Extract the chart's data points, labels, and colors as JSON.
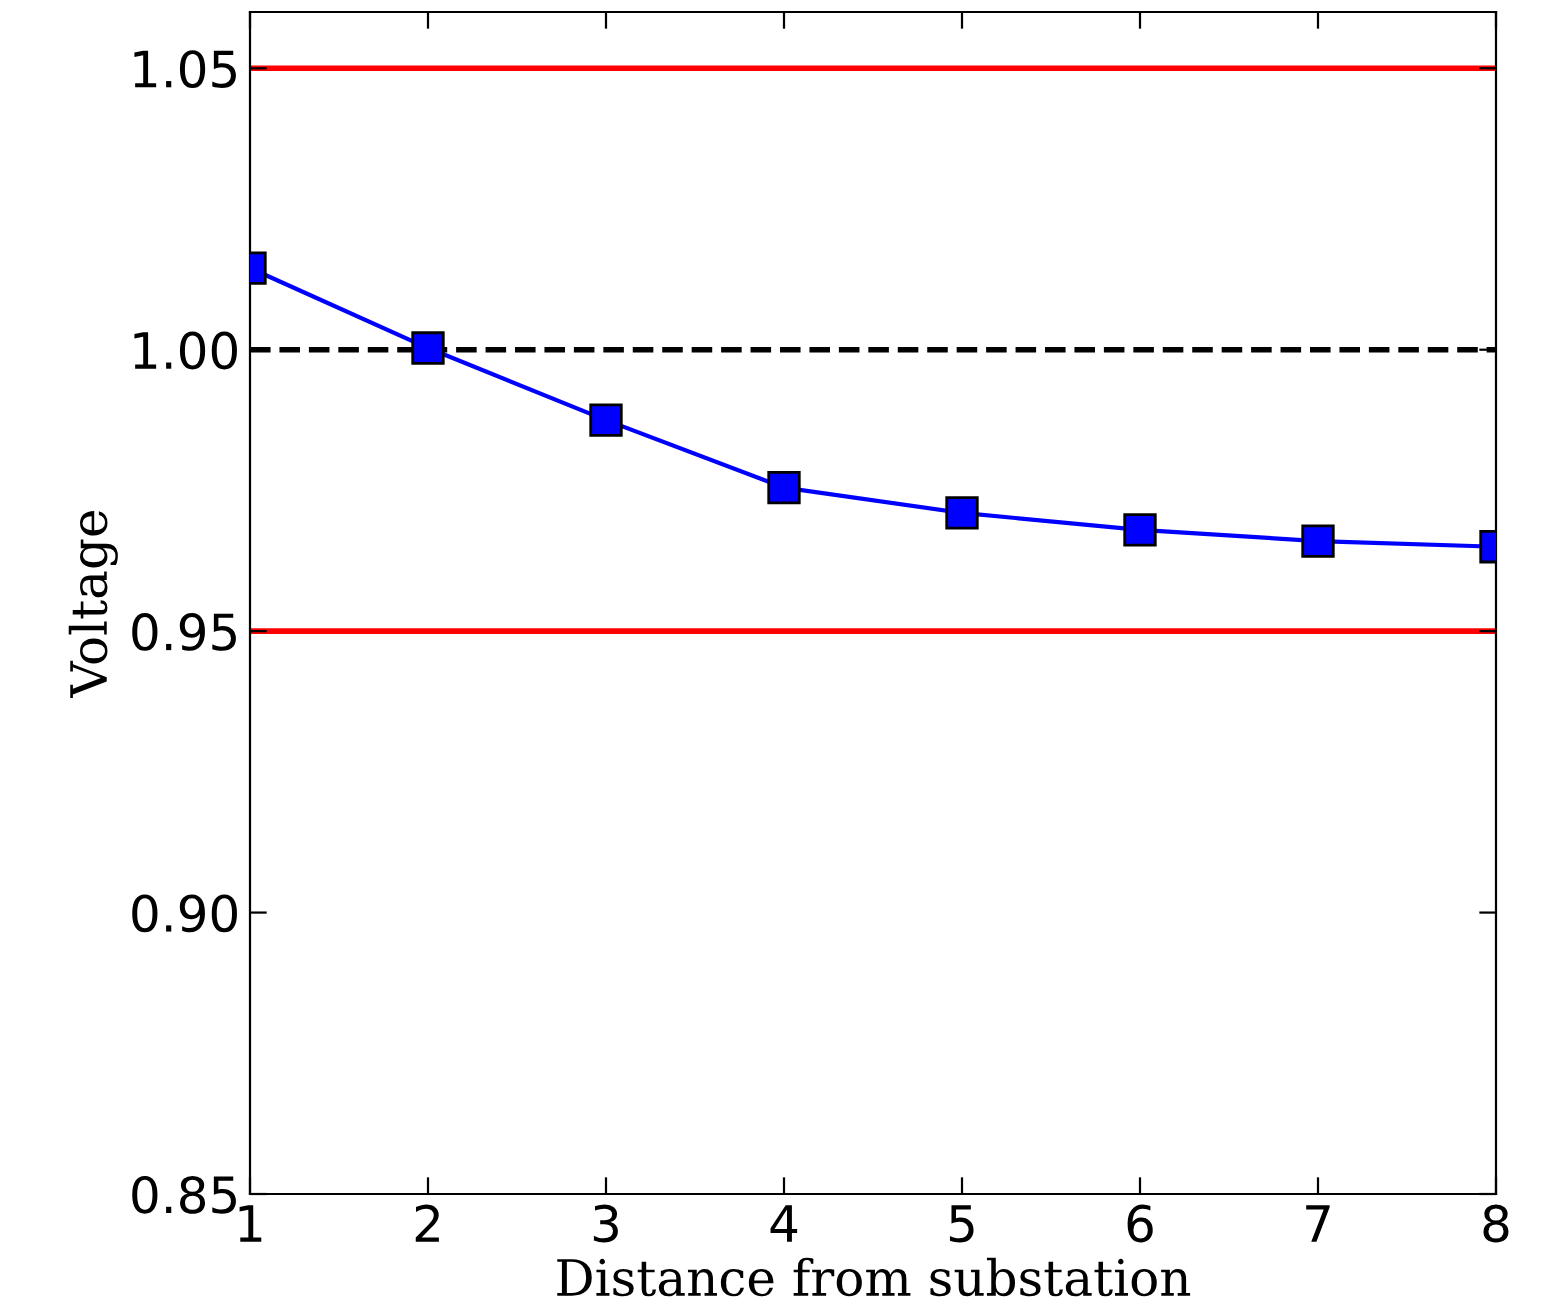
{
  "chart_data": {
    "type": "line",
    "xlabel": "Distance from substation",
    "ylabel": "Voltage",
    "x": [
      1,
      2,
      3,
      4,
      5,
      6,
      7,
      8
    ],
    "series": [
      {
        "color": "#0000ff",
        "values": [
          1.0145,
          1.0003,
          0.9875,
          0.9755,
          0.971,
          0.968,
          0.966,
          0.965
        ]
      }
    ],
    "marker": "square",
    "line_style": "solid",
    "grid": false,
    "legend": false,
    "xlim": [
      1,
      8
    ],
    "xticks": [
      1,
      2,
      3,
      4,
      5,
      6,
      7,
      8
    ],
    "ylim": [
      0.85,
      1.06
    ],
    "yticks": [
      {
        "value": 0.85,
        "label": "0.85"
      },
      {
        "value": 0.9,
        "label": "0.90"
      },
      {
        "value": 0.95,
        "label": "0.95"
      },
      {
        "value": 1.0,
        "label": "1.00"
      },
      {
        "value": 1.05,
        "label": "1.05"
      }
    ],
    "ref_lines": [
      {
        "axis": "y",
        "value": 1.05,
        "color": "#ff0000",
        "line_style": "solid"
      },
      {
        "axis": "y",
        "value": 0.95,
        "color": "#ff0000",
        "line_style": "solid"
      },
      {
        "axis": "y",
        "value": 1.0,
        "color": "#000000",
        "line_style": "dashed"
      }
    ]
  }
}
